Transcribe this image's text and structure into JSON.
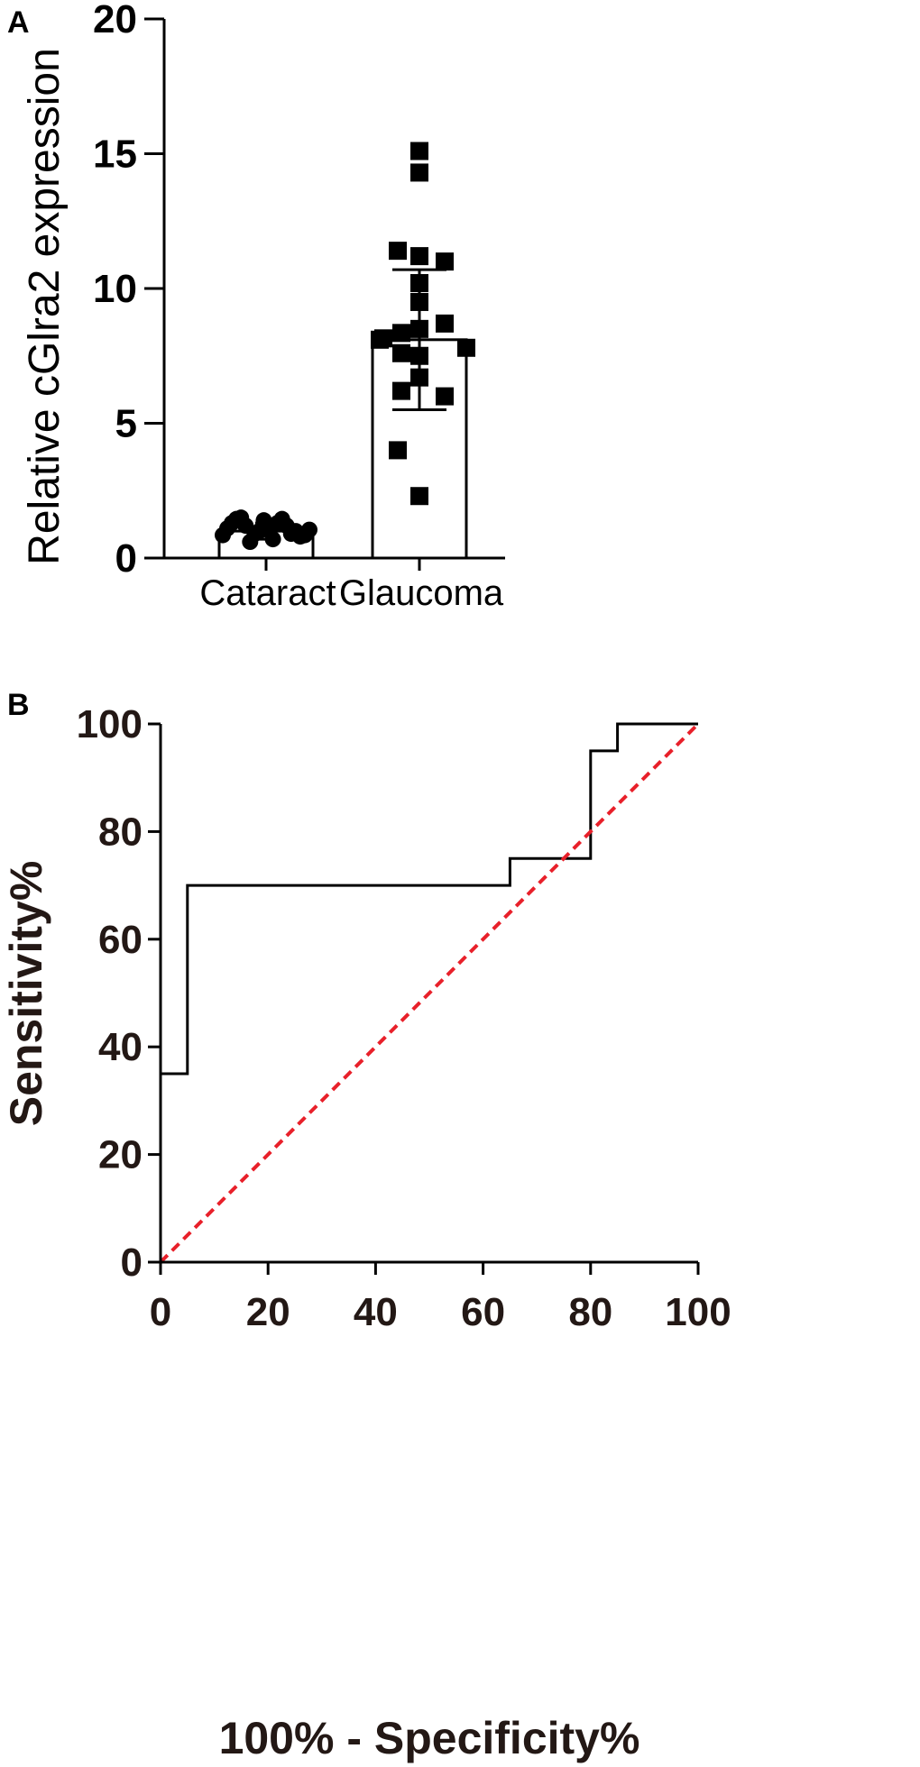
{
  "chart_data": [
    {
      "panel": "A",
      "type": "bar",
      "xlabel": "",
      "ylabel": "Relative cGlra2 expression",
      "ylim": [
        0,
        20
      ],
      "yticks": [
        0,
        5,
        10,
        15,
        20
      ],
      "categories": [
        "Cataract",
        "Glaucoma"
      ],
      "means": [
        1.0,
        8.1
      ],
      "sd": [
        0.3,
        2.6
      ],
      "points": [
        [
          0.85,
          1.1,
          1.3,
          1.45,
          1.5,
          1.2,
          0.6,
          0.9,
          1.0,
          1.4,
          1.1,
          0.7,
          1.3,
          1.45,
          1.2,
          0.9,
          1.0,
          0.8,
          0.85,
          1.05
        ],
        [
          15.1,
          14.3,
          11.4,
          11.2,
          11.0,
          10.2,
          9.5,
          8.7,
          8.5,
          8.35,
          8.15,
          8.1,
          7.8,
          7.6,
          7.5,
          6.7,
          6.2,
          6.0,
          4.0,
          2.3
        ]
      ],
      "grid": false
    },
    {
      "panel": "B",
      "type": "line",
      "xlabel": "100% - Specificity%",
      "ylabel": "Sensitivity%",
      "xlim": [
        0,
        100
      ],
      "ylim": [
        0,
        100
      ],
      "xticks": [
        0,
        20,
        40,
        60,
        80,
        100
      ],
      "yticks": [
        0,
        20,
        40,
        60,
        80,
        100
      ],
      "series": [
        {
          "color": "#000000",
          "style": "step",
          "x": [
            0,
            5,
            5,
            65,
            65,
            80,
            80,
            85,
            85,
            100
          ],
          "y": [
            35,
            35,
            70,
            70,
            75,
            75,
            95,
            95,
            100,
            100
          ]
        },
        {
          "color": "#e8202a",
          "style": "dashed",
          "x": [
            0,
            100
          ],
          "y": [
            0,
            100
          ]
        }
      ],
      "grid": false
    }
  ],
  "panels": {
    "a": "A",
    "b": "B"
  }
}
